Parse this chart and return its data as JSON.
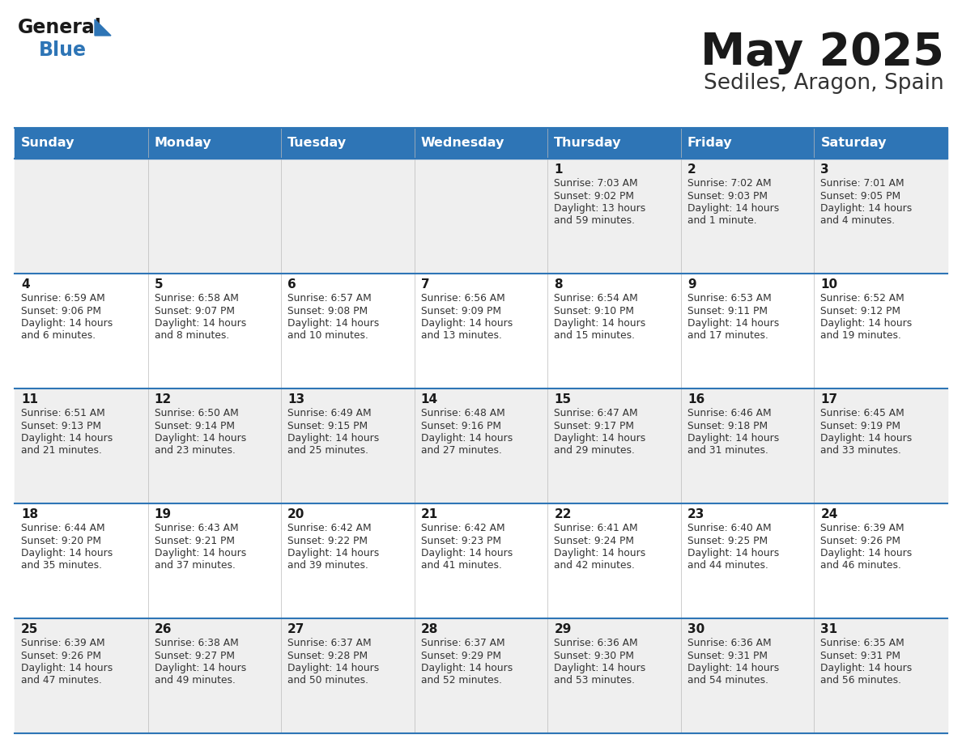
{
  "title": "May 2025",
  "subtitle": "Sediles, Aragon, Spain",
  "header_color": "#2E75B6",
  "header_text_color": "#FFFFFF",
  "background_color": "#FFFFFF",
  "cell_bg_odd": "#EFEFEF",
  "cell_bg_even": "#FFFFFF",
  "day_headers": [
    "Sunday",
    "Monday",
    "Tuesday",
    "Wednesday",
    "Thursday",
    "Friday",
    "Saturday"
  ],
  "title_color": "#1a1a1a",
  "subtitle_color": "#333333",
  "line_color": "#2E75B6",
  "days": [
    {
      "day": 1,
      "col": 4,
      "row": 0,
      "sunrise": "7:03 AM",
      "sunset": "9:02 PM",
      "daylight": "13 hours and 59 minutes."
    },
    {
      "day": 2,
      "col": 5,
      "row": 0,
      "sunrise": "7:02 AM",
      "sunset": "9:03 PM",
      "daylight": "14 hours and 1 minute."
    },
    {
      "day": 3,
      "col": 6,
      "row": 0,
      "sunrise": "7:01 AM",
      "sunset": "9:05 PM",
      "daylight": "14 hours and 4 minutes."
    },
    {
      "day": 4,
      "col": 0,
      "row": 1,
      "sunrise": "6:59 AM",
      "sunset": "9:06 PM",
      "daylight": "14 hours and 6 minutes."
    },
    {
      "day": 5,
      "col": 1,
      "row": 1,
      "sunrise": "6:58 AM",
      "sunset": "9:07 PM",
      "daylight": "14 hours and 8 minutes."
    },
    {
      "day": 6,
      "col": 2,
      "row": 1,
      "sunrise": "6:57 AM",
      "sunset": "9:08 PM",
      "daylight": "14 hours and 10 minutes."
    },
    {
      "day": 7,
      "col": 3,
      "row": 1,
      "sunrise": "6:56 AM",
      "sunset": "9:09 PM",
      "daylight": "14 hours and 13 minutes."
    },
    {
      "day": 8,
      "col": 4,
      "row": 1,
      "sunrise": "6:54 AM",
      "sunset": "9:10 PM",
      "daylight": "14 hours and 15 minutes."
    },
    {
      "day": 9,
      "col": 5,
      "row": 1,
      "sunrise": "6:53 AM",
      "sunset": "9:11 PM",
      "daylight": "14 hours and 17 minutes."
    },
    {
      "day": 10,
      "col": 6,
      "row": 1,
      "sunrise": "6:52 AM",
      "sunset": "9:12 PM",
      "daylight": "14 hours and 19 minutes."
    },
    {
      "day": 11,
      "col": 0,
      "row": 2,
      "sunrise": "6:51 AM",
      "sunset": "9:13 PM",
      "daylight": "14 hours and 21 minutes."
    },
    {
      "day": 12,
      "col": 1,
      "row": 2,
      "sunrise": "6:50 AM",
      "sunset": "9:14 PM",
      "daylight": "14 hours and 23 minutes."
    },
    {
      "day": 13,
      "col": 2,
      "row": 2,
      "sunrise": "6:49 AM",
      "sunset": "9:15 PM",
      "daylight": "14 hours and 25 minutes."
    },
    {
      "day": 14,
      "col": 3,
      "row": 2,
      "sunrise": "6:48 AM",
      "sunset": "9:16 PM",
      "daylight": "14 hours and 27 minutes."
    },
    {
      "day": 15,
      "col": 4,
      "row": 2,
      "sunrise": "6:47 AM",
      "sunset": "9:17 PM",
      "daylight": "14 hours and 29 minutes."
    },
    {
      "day": 16,
      "col": 5,
      "row": 2,
      "sunrise": "6:46 AM",
      "sunset": "9:18 PM",
      "daylight": "14 hours and 31 minutes."
    },
    {
      "day": 17,
      "col": 6,
      "row": 2,
      "sunrise": "6:45 AM",
      "sunset": "9:19 PM",
      "daylight": "14 hours and 33 minutes."
    },
    {
      "day": 18,
      "col": 0,
      "row": 3,
      "sunrise": "6:44 AM",
      "sunset": "9:20 PM",
      "daylight": "14 hours and 35 minutes."
    },
    {
      "day": 19,
      "col": 1,
      "row": 3,
      "sunrise": "6:43 AM",
      "sunset": "9:21 PM",
      "daylight": "14 hours and 37 minutes."
    },
    {
      "day": 20,
      "col": 2,
      "row": 3,
      "sunrise": "6:42 AM",
      "sunset": "9:22 PM",
      "daylight": "14 hours and 39 minutes."
    },
    {
      "day": 21,
      "col": 3,
      "row": 3,
      "sunrise": "6:42 AM",
      "sunset": "9:23 PM",
      "daylight": "14 hours and 41 minutes."
    },
    {
      "day": 22,
      "col": 4,
      "row": 3,
      "sunrise": "6:41 AM",
      "sunset": "9:24 PM",
      "daylight": "14 hours and 42 minutes."
    },
    {
      "day": 23,
      "col": 5,
      "row": 3,
      "sunrise": "6:40 AM",
      "sunset": "9:25 PM",
      "daylight": "14 hours and 44 minutes."
    },
    {
      "day": 24,
      "col": 6,
      "row": 3,
      "sunrise": "6:39 AM",
      "sunset": "9:26 PM",
      "daylight": "14 hours and 46 minutes."
    },
    {
      "day": 25,
      "col": 0,
      "row": 4,
      "sunrise": "6:39 AM",
      "sunset": "9:26 PM",
      "daylight": "14 hours and 47 minutes."
    },
    {
      "day": 26,
      "col": 1,
      "row": 4,
      "sunrise": "6:38 AM",
      "sunset": "9:27 PM",
      "daylight": "14 hours and 49 minutes."
    },
    {
      "day": 27,
      "col": 2,
      "row": 4,
      "sunrise": "6:37 AM",
      "sunset": "9:28 PM",
      "daylight": "14 hours and 50 minutes."
    },
    {
      "day": 28,
      "col": 3,
      "row": 4,
      "sunrise": "6:37 AM",
      "sunset": "9:29 PM",
      "daylight": "14 hours and 52 minutes."
    },
    {
      "day": 29,
      "col": 4,
      "row": 4,
      "sunrise": "6:36 AM",
      "sunset": "9:30 PM",
      "daylight": "14 hours and 53 minutes."
    },
    {
      "day": 30,
      "col": 5,
      "row": 4,
      "sunrise": "6:36 AM",
      "sunset": "9:31 PM",
      "daylight": "14 hours and 54 minutes."
    },
    {
      "day": 31,
      "col": 6,
      "row": 4,
      "sunrise": "6:35 AM",
      "sunset": "9:31 PM",
      "daylight": "14 hours and 56 minutes."
    }
  ]
}
